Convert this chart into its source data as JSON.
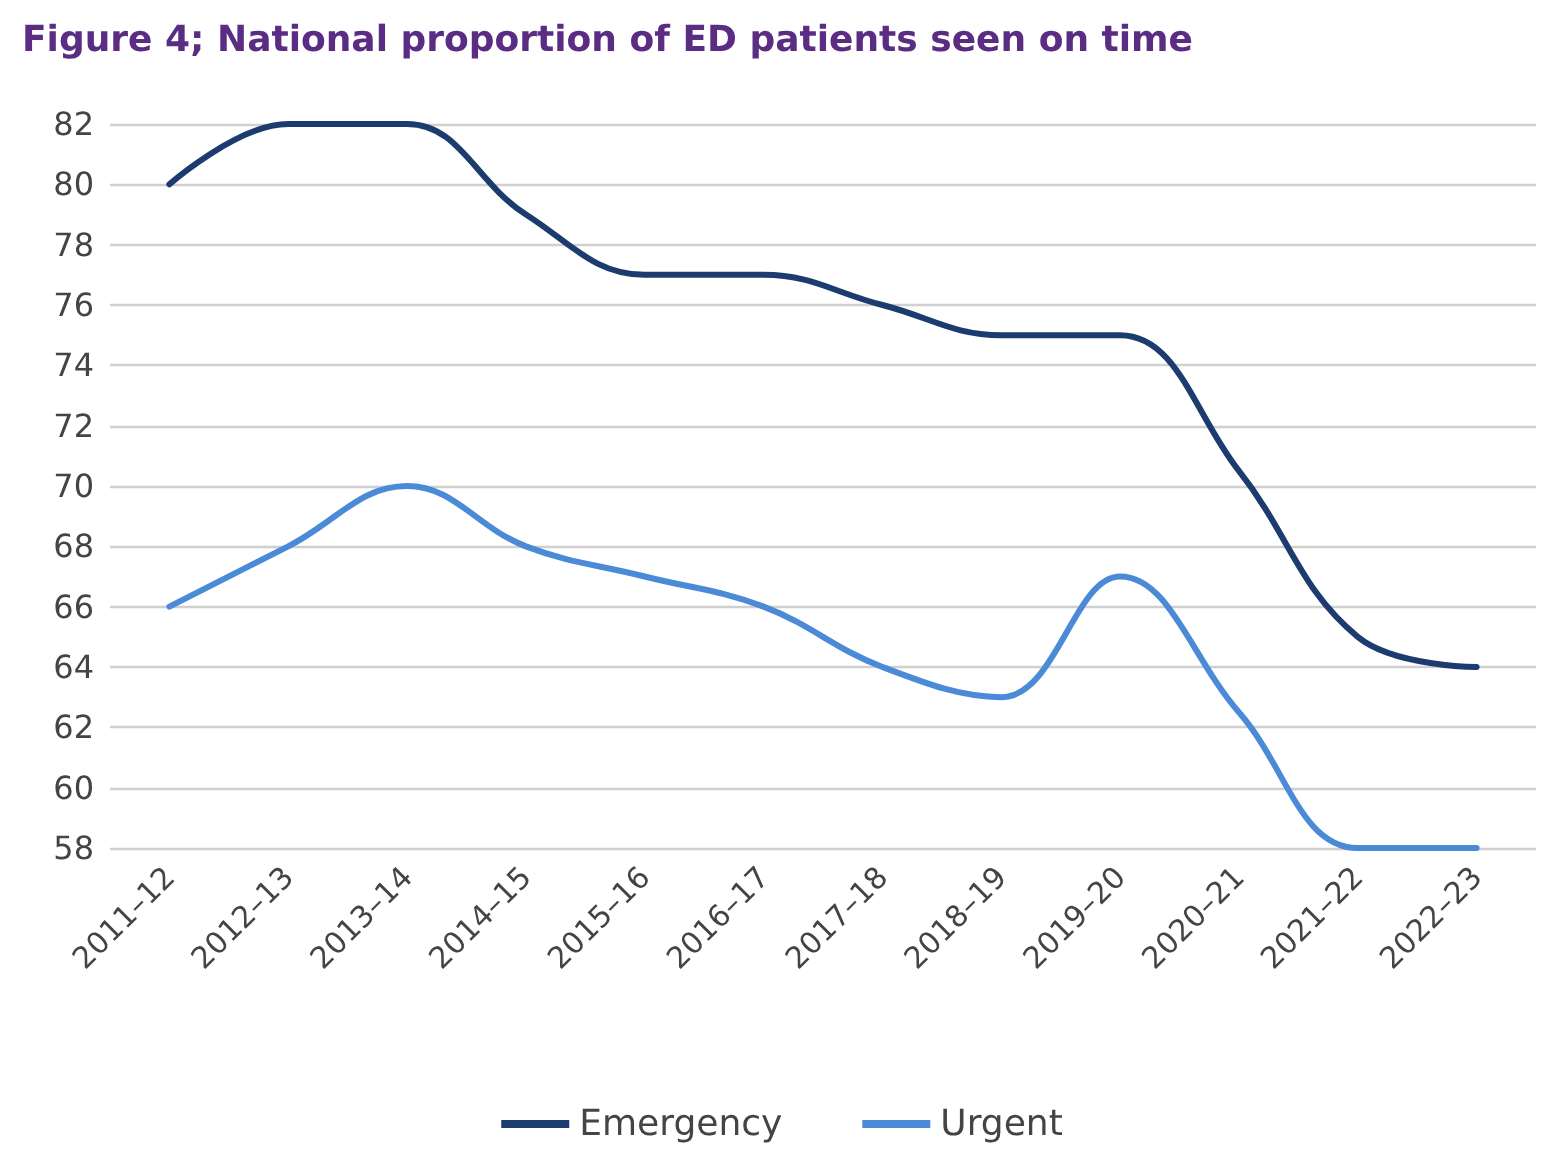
{
  "chart_data": {
    "type": "line",
    "title": "Figure 4; National proportion of ED patients seen on time",
    "categories": [
      "2011–12",
      "2012–13",
      "2013–14",
      "2014–15",
      "2015–16",
      "2016–17",
      "2017–18",
      "2018–19",
      "2019–20",
      "2020–21",
      "2021–22",
      "2022–23"
    ],
    "series": [
      {
        "name": "Emergency",
        "color": "#1c3b6e",
        "values": [
          80,
          82,
          82,
          79,
          77,
          77,
          76,
          75,
          75,
          70.5,
          65,
          64
        ]
      },
      {
        "name": "Urgent",
        "color": "#4a8ad6",
        "values": [
          66,
          68,
          70,
          68,
          67,
          66,
          64,
          63,
          67,
          62.5,
          58,
          58
        ]
      }
    ],
    "ylim": [
      58,
      82
    ],
    "yticks": [
      58,
      60,
      62,
      64,
      66,
      68,
      70,
      72,
      74,
      76,
      78,
      80,
      82
    ],
    "grid": "y",
    "legend": "bottom",
    "marker": "none",
    "line_style": "solid"
  }
}
